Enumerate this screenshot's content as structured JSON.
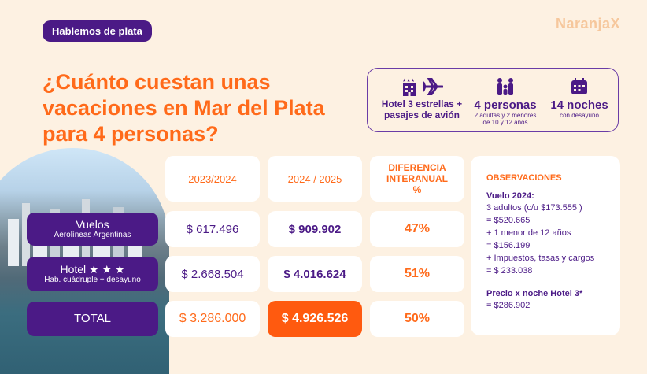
{
  "tag": "Hablemos de plata",
  "logo": "NaranjaX",
  "title": "¿Cuánto cuestan unas vacaciones en Mar del Plata para 4 personas?",
  "info": {
    "hotel_flights": "Hotel 3 estrellas + pasajes de avión",
    "people": "4 personas",
    "people_sub": "2 adultas y 2 menores de 10 y 12 años",
    "nights": "14 noches",
    "nights_sub": "con desayuno"
  },
  "table": {
    "headers": [
      "2023/2024",
      "2024 / 2025",
      "DIFERENCIA INTERANUAL %"
    ],
    "rows": [
      {
        "label": "Vuelos",
        "sublabel": "Aerolíneas Argentinas",
        "v2023": "$ 617.496",
        "v2024": "$ 909.902",
        "diff": "47%"
      },
      {
        "label": "Hotel ★ ★ ★",
        "sublabel": "Hab. cuádruple + desayuno",
        "v2023": "$ 2.668.504",
        "v2024": "$ 4.016.624",
        "diff": "51%"
      },
      {
        "label": "TOTAL",
        "sublabel": "",
        "v2023": "$ 3.286.000",
        "v2024": "$ 4.926.526",
        "diff": "50%"
      }
    ]
  },
  "observations": {
    "header": "OBSERVACIONES",
    "flight_title": "Vuelo 2024:",
    "lines": [
      "3 adultos (c/u $173.555 )",
      "= $520.665",
      "+ 1 menor de 12 años",
      "= $156.199",
      "+ Impuestos, tasas y cargos",
      "= $ 233.038"
    ],
    "hotel_title": "Precio x noche Hotel 3*",
    "hotel_value": "= $286.902"
  },
  "colors": {
    "orange": "#ff6a1a",
    "purple": "#4b1a86",
    "background": "#fdf1e2"
  }
}
